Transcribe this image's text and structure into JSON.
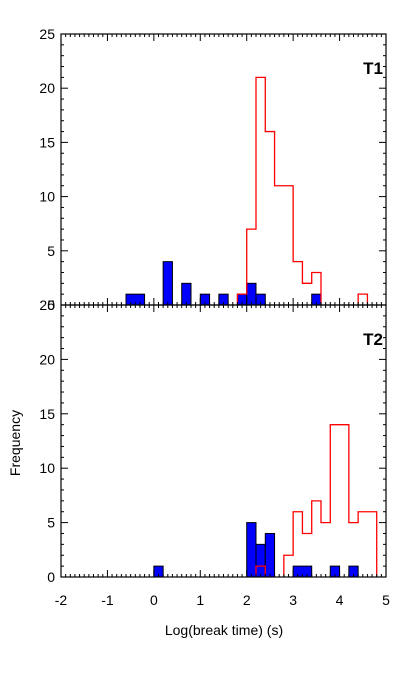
{
  "chart_data": [
    {
      "type": "bar",
      "panel_label": "T1",
      "xlim": [
        -2,
        5
      ],
      "ylim": [
        0,
        25
      ],
      "bin_width": 0.2,
      "yticks": [
        0,
        5,
        10,
        15,
        20,
        25
      ],
      "series": [
        {
          "style": "filled histogram",
          "color": "#0000ff",
          "bins": [
            {
              "x0": -0.6,
              "x1": -0.2,
              "count": 1
            },
            {
              "x0": 0.2,
              "x1": 0.4,
              "count": 4
            },
            {
              "x0": 0.6,
              "x1": 0.8,
              "count": 2
            },
            {
              "x0": 1.0,
              "x1": 1.2,
              "count": 1
            },
            {
              "x0": 1.4,
              "x1": 1.6,
              "count": 1
            },
            {
              "x0": 1.8,
              "x1": 2.0,
              "count": 1
            },
            {
              "x0": 2.0,
              "x1": 2.2,
              "count": 2
            },
            {
              "x0": 2.2,
              "x1": 2.4,
              "count": 1
            },
            {
              "x0": 3.4,
              "x1": 3.6,
              "count": 1
            }
          ]
        },
        {
          "style": "step outline",
          "color": "#ff0000",
          "bins": [
            {
              "x0": 1.8,
              "x1": 2.0,
              "count": 1
            },
            {
              "x0": 2.0,
              "x1": 2.2,
              "count": 7
            },
            {
              "x0": 2.2,
              "x1": 2.4,
              "count": 21
            },
            {
              "x0": 2.4,
              "x1": 2.6,
              "count": 16
            },
            {
              "x0": 2.6,
              "x1": 3.0,
              "count": 11
            },
            {
              "x0": 3.0,
              "x1": 3.2,
              "count": 4
            },
            {
              "x0": 3.2,
              "x1": 3.4,
              "count": 2
            },
            {
              "x0": 3.4,
              "x1": 3.6,
              "count": 3
            },
            {
              "x0": 4.4,
              "x1": 4.6,
              "count": 1
            }
          ]
        }
      ]
    },
    {
      "type": "bar",
      "panel_label": "T2",
      "xlim": [
        -2,
        5
      ],
      "ylim": [
        0,
        25
      ],
      "bin_width": 0.2,
      "xticks": [
        -2,
        -1,
        0,
        1,
        2,
        3,
        4,
        5
      ],
      "yticks": [
        0,
        5,
        10,
        15,
        20,
        25
      ],
      "xlabel": "Log(break time) (s)",
      "ylabel": "Frequency",
      "series": [
        {
          "style": "filled histogram",
          "color": "#0000ff",
          "bins": [
            {
              "x0": 0.0,
              "x1": 0.2,
              "count": 1
            },
            {
              "x0": 2.0,
              "x1": 2.2,
              "count": 5
            },
            {
              "x0": 2.2,
              "x1": 2.4,
              "count": 3
            },
            {
              "x0": 2.4,
              "x1": 2.6,
              "count": 4
            },
            {
              "x0": 3.0,
              "x1": 3.4,
              "count": 1
            },
            {
              "x0": 3.8,
              "x1": 4.0,
              "count": 1
            },
            {
              "x0": 4.2,
              "x1": 4.4,
              "count": 1
            }
          ]
        },
        {
          "style": "step outline",
          "color": "#ff0000",
          "bins": [
            {
              "x0": 2.2,
              "x1": 2.4,
              "count": 1
            },
            {
              "x0": 2.8,
              "x1": 3.0,
              "count": 2
            },
            {
              "x0": 3.0,
              "x1": 3.2,
              "count": 6
            },
            {
              "x0": 3.2,
              "x1": 3.4,
              "count": 4
            },
            {
              "x0": 3.4,
              "x1": 3.6,
              "count": 7
            },
            {
              "x0": 3.6,
              "x1": 3.8,
              "count": 5
            },
            {
              "x0": 3.8,
              "x1": 4.2,
              "count": 14
            },
            {
              "x0": 4.2,
              "x1": 4.4,
              "count": 5
            },
            {
              "x0": 4.4,
              "x1": 4.8,
              "count": 6
            }
          ]
        }
      ]
    }
  ]
}
